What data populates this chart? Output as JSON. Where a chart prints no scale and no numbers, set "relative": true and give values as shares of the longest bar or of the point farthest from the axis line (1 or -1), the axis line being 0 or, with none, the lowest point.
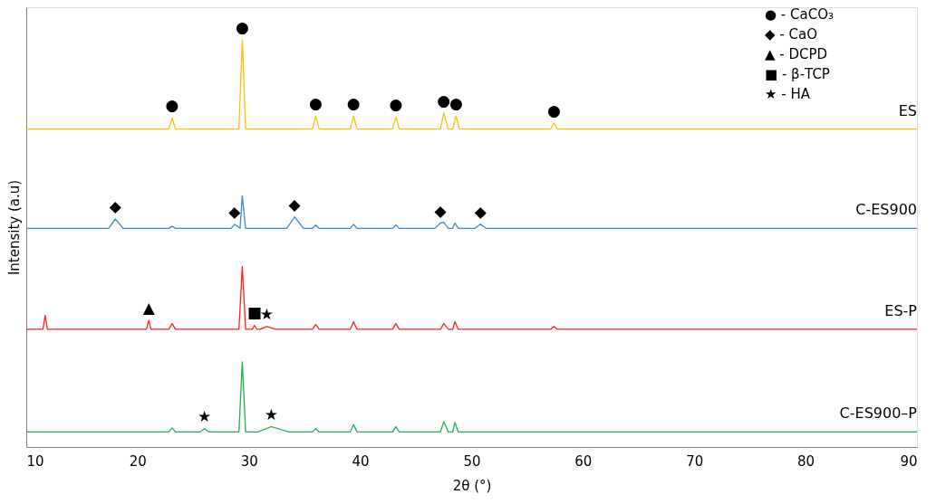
{
  "chart_data": {
    "type": "line",
    "relative": true,
    "xlabel": "2θ (°)",
    "ylabel": "Intensity (a.u)",
    "xlim": [
      10,
      90
    ],
    "xticks": [
      10,
      20,
      30,
      40,
      50,
      60,
      70,
      80,
      90
    ],
    "grid": false,
    "tick_labels": "x",
    "marker": "none",
    "line_style": "solid",
    "series": [
      {
        "name": "ES",
        "color": "#ffc000",
        "x": [
          10,
          22.8,
          23.1,
          23.4,
          29.1,
          29.4,
          29.7,
          35.7,
          36.0,
          36.3,
          39.1,
          39.4,
          39.7,
          42.9,
          43.2,
          43.5,
          47.2,
          47.5,
          47.9,
          48.3,
          48.6,
          48.9,
          57.1,
          57.4,
          57.7,
          90
        ],
        "values": [
          0.781,
          0.781,
          0.808,
          0.781,
          0.781,
          1,
          0.781,
          0.781,
          0.813,
          0.781,
          0.781,
          0.813,
          0.781,
          0.781,
          0.811,
          0.781,
          0.781,
          0.821,
          0.781,
          0.781,
          0.813,
          0.781,
          0.781,
          0.796,
          0.781,
          0.781
        ]
      },
      {
        "name": "C-ES900",
        "color": "#3a8ad6",
        "x": [
          10,
          17.4,
          18.0,
          18.7,
          22.8,
          23.1,
          23.4,
          28.4,
          28.7,
          29.2,
          29.4,
          29.7,
          33.4,
          34.1,
          34.9,
          35.7,
          36.0,
          36.3,
          39.1,
          39.4,
          39.7,
          42.9,
          43.2,
          43.5,
          46.7,
          47.2,
          47.5,
          47.9,
          48.3,
          48.5,
          48.8,
          50.3,
          50.8,
          51.3,
          90
        ],
        "values": [
          0.537,
          0.537,
          0.56,
          0.537,
          0.537,
          0.542,
          0.537,
          0.537,
          0.547,
          0.537,
          0.617,
          0.537,
          0.537,
          0.565,
          0.537,
          0.537,
          0.545,
          0.537,
          0.537,
          0.547,
          0.537,
          0.537,
          0.545,
          0.537,
          0.537,
          0.55,
          0.552,
          0.537,
          0.537,
          0.55,
          0.537,
          0.537,
          0.547,
          0.537,
          0.537
        ]
      },
      {
        "name": "ES-P",
        "color": "#ff2020",
        "x": [
          10,
          11.5,
          11.7,
          11.9,
          20.8,
          21.0,
          21.2,
          22.8,
          23.1,
          23.4,
          29.1,
          29.4,
          29.7,
          30.3,
          30.5,
          30.7,
          31.0,
          31.6,
          32.4,
          35.7,
          36.0,
          36.3,
          39.1,
          39.4,
          39.7,
          42.9,
          43.2,
          43.5,
          47.2,
          47.5,
          47.9,
          48.3,
          48.5,
          48.8,
          57.1,
          57.4,
          57.7,
          90
        ],
        "values": [
          0.289,
          0.289,
          0.323,
          0.289,
          0.289,
          0.311,
          0.289,
          0.289,
          0.303,
          0.289,
          0.289,
          0.443,
          0.289,
          0.289,
          0.299,
          0.289,
          0.289,
          0.296,
          0.289,
          0.289,
          0.301,
          0.289,
          0.289,
          0.308,
          0.289,
          0.289,
          0.303,
          0.289,
          0.289,
          0.303,
          0.289,
          0.289,
          0.308,
          0.289,
          0.289,
          0.296,
          0.289,
          0.289
        ]
      },
      {
        "name": "C-ES900–P",
        "color": "#22b04b",
        "x": [
          10,
          22.8,
          23.1,
          23.4,
          25.6,
          26.0,
          26.4,
          29.1,
          29.4,
          29.7,
          30.8,
          32.0,
          33.6,
          35.7,
          36.0,
          36.3,
          39.1,
          39.4,
          39.7,
          42.9,
          43.2,
          43.5,
          47.2,
          47.5,
          47.9,
          48.3,
          48.5,
          48.8,
          90
        ],
        "values": [
          0.037,
          0.037,
          0.047,
          0.037,
          0.037,
          0.045,
          0.037,
          0.037,
          0.209,
          0.037,
          0.037,
          0.05,
          0.037,
          0.037,
          0.045,
          0.037,
          0.037,
          0.055,
          0.037,
          0.037,
          0.05,
          0.037,
          0.037,
          0.062,
          0.037,
          0.037,
          0.06,
          0.037,
          0.037
        ]
      }
    ],
    "annotations": [
      {
        "text": "●",
        "x": 23.1,
        "y": 0.808
      },
      {
        "text": "●",
        "x": 29.4,
        "y": 1
      },
      {
        "text": "●",
        "x": 36.0,
        "y": 0.813
      },
      {
        "text": "●",
        "x": 39.4,
        "y": 0.813
      },
      {
        "text": "●",
        "x": 43.2,
        "y": 0.811
      },
      {
        "text": "●",
        "x": 47.5,
        "y": 0.821
      },
      {
        "text": "●",
        "x": 48.6,
        "y": 0.813
      },
      {
        "text": "●",
        "x": 57.4,
        "y": 0.796
      },
      {
        "text": "◆",
        "x": 18.0,
        "y": 0.56
      },
      {
        "text": "◆",
        "x": 28.7,
        "y": 0.547
      },
      {
        "text": "◆",
        "x": 34.1,
        "y": 0.565
      },
      {
        "text": "◆",
        "x": 47.2,
        "y": 0.55
      },
      {
        "text": "◆",
        "x": 50.8,
        "y": 0.547
      },
      {
        "text": "▲",
        "x": 21.0,
        "y": 0.311
      },
      {
        "text": "■",
        "x": 30.5,
        "y": 0.299
      },
      {
        "text": "★",
        "x": 31.6,
        "y": 0.296
      },
      {
        "text": "★",
        "x": 26.0,
        "y": 0.045
      },
      {
        "text": "★",
        "x": 32.0,
        "y": 0.05
      },
      "● - CaCO₃",
      "◆ - CaO",
      "▲ - DCPD",
      "■ - β-TCP",
      "★ - HA"
    ]
  }
}
